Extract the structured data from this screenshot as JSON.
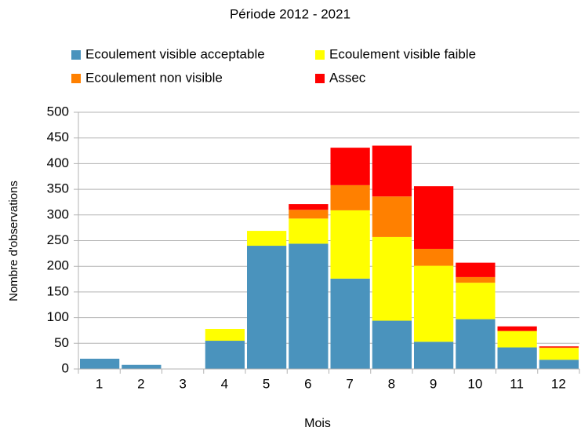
{
  "chart_data": {
    "type": "stacked_bar",
    "title": "Période 2012 - 2021",
    "x_label": "Mois",
    "y_label": "Nombre d'observations",
    "categories": [
      "1",
      "2",
      "3",
      "4",
      "5",
      "6",
      "7",
      "8",
      "9",
      "10",
      "11",
      "12"
    ],
    "series": [
      {
        "name": "Ecoulement visible acceptable",
        "color": "#4a93bd",
        "values": [
          20,
          8,
          0,
          55,
          240,
          244,
          176,
          94,
          53,
          97,
          42,
          18
        ]
      },
      {
        "name": "Ecoulement visible faible",
        "color": "#ffff00",
        "values": [
          0,
          0,
          0,
          23,
          29,
          49,
          133,
          163,
          148,
          71,
          32,
          23
        ]
      },
      {
        "name": "Ecoulement non visible",
        "color": "#ff8000",
        "values": [
          0,
          0,
          0,
          0,
          0,
          17,
          49,
          79,
          33,
          11,
          0,
          1
        ]
      },
      {
        "name": "Assec",
        "color": "#ff0000",
        "values": [
          0,
          0,
          0,
          0,
          0,
          11,
          73,
          99,
          122,
          28,
          9,
          2
        ]
      }
    ],
    "ylim": [
      0,
      500
    ],
    "yticks": [
      0,
      50,
      100,
      150,
      200,
      250,
      300,
      350,
      400,
      450,
      500
    ],
    "grid": true,
    "legend": "top"
  }
}
